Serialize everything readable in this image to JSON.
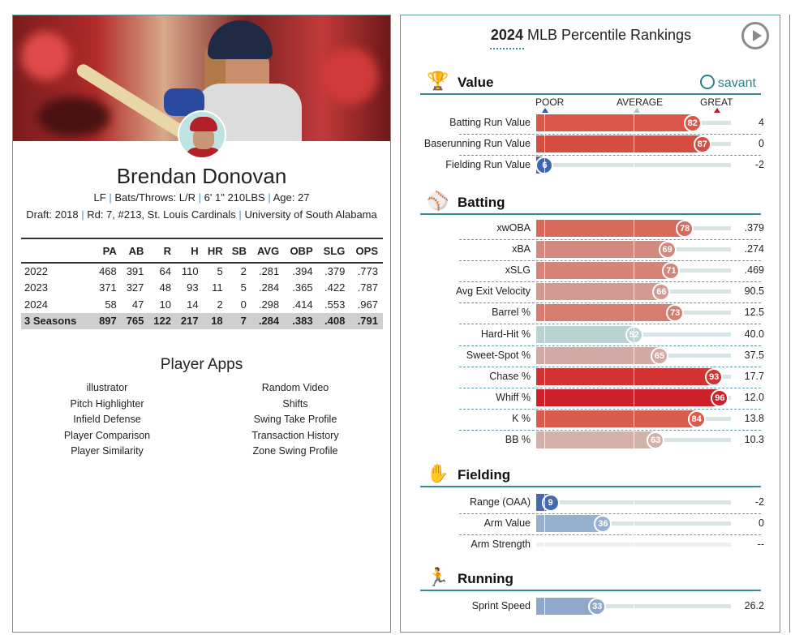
{
  "player": {
    "name": "Brendan Donovan",
    "position": "LF",
    "bats_throws": "Bats/Throws: L/R",
    "height_weight": "6' 1\" 210LBS",
    "age": "Age: 27",
    "draft_label": "Draft:",
    "draft_year": "2018",
    "draft_round": "Rd: 7, #213,",
    "draft_team": "St. Louis Cardinals",
    "school": "University of South Alabama"
  },
  "stats_table": {
    "headers": [
      "",
      "PA",
      "AB",
      "R",
      "H",
      "HR",
      "SB",
      "AVG",
      "OBP",
      "SLG",
      "OPS"
    ],
    "rows": [
      [
        "2022",
        "468",
        "391",
        "64",
        "110",
        "5",
        "2",
        ".281",
        ".394",
        ".379",
        ".773"
      ],
      [
        "2023",
        "371",
        "327",
        "48",
        "93",
        "11",
        "5",
        ".284",
        ".365",
        ".422",
        ".787"
      ],
      [
        "2024",
        "58",
        "47",
        "10",
        "14",
        "2",
        "0",
        ".298",
        ".414",
        ".553",
        ".967"
      ]
    ],
    "total": [
      "3 Seasons",
      "897",
      "765",
      "122",
      "217",
      "18",
      "7",
      ".284",
      ".383",
      ".408",
      ".791"
    ]
  },
  "player_apps": {
    "title": "Player Apps",
    "left": [
      "illustrator",
      "Pitch Highlighter",
      "Infield Defense",
      "Player Comparison",
      "Player Similarity"
    ],
    "right": [
      "Random Video",
      "Shifts",
      "Swing Take Profile",
      "Transaction History",
      "Zone Swing Profile"
    ]
  },
  "percentile": {
    "title_year": "2024",
    "title_rest": "MLB Percentile Rankings",
    "savant_label": "savant",
    "scale": {
      "poor": "POOR",
      "average": "AVERAGE",
      "great": "GREAT"
    },
    "colors": {
      "poor": "#2a5aa8",
      "average": "#a9c8cc",
      "great": "#c0191f",
      "accent": "#2b8288"
    },
    "sections": [
      {
        "title": "Value",
        "icon": "trophy-icon",
        "rows": [
          {
            "label": "Batting Run Value",
            "percentile": 82,
            "value": "4",
            "color": "#d9584a"
          },
          {
            "label": "Baserunning Run Value",
            "percentile": 87,
            "value": "0",
            "color": "#d74c3f"
          },
          {
            "label": "Fielding Run Value",
            "percentile": 6,
            "value": "-2",
            "color": "#3e66b0"
          }
        ]
      },
      {
        "title": "Batting",
        "icon": "batter-icon",
        "rows": [
          {
            "label": "xwOBA",
            "percentile": 78,
            "value": ".379",
            "color": "#d86a5b"
          },
          {
            "label": "xBA",
            "percentile": 69,
            "value": ".274",
            "color": "#d5887d"
          },
          {
            "label": "xSLG",
            "percentile": 71,
            "value": ".469",
            "color": "#d6837a"
          },
          {
            "label": "Avg Exit Velocity",
            "percentile": 66,
            "value": "90.5",
            "color": "#d49a91"
          },
          {
            "label": "Barrel %",
            "percentile": 73,
            "value": "12.5",
            "color": "#d77d70"
          },
          {
            "label": "Hard-Hit %",
            "percentile": 52,
            "value": "40.0",
            "color": "#b9d3d5"
          },
          {
            "label": "Sweet-Spot %",
            "percentile": 65,
            "value": "37.5",
            "color": "#d3aaa3"
          },
          {
            "label": "Chase %",
            "percentile": 93,
            "value": "17.7",
            "color": "#d33232"
          },
          {
            "label": "Whiff %",
            "percentile": 96,
            "value": "12.0",
            "color": "#cf2029"
          },
          {
            "label": "K %",
            "percentile": 84,
            "value": "13.8",
            "color": "#d85b4e"
          },
          {
            "label": "BB %",
            "percentile": 63,
            "value": "10.3",
            "color": "#d3b1ab"
          }
        ]
      },
      {
        "title": "Fielding",
        "icon": "fielder-icon",
        "rows": [
          {
            "label": "Range (OAA)",
            "percentile": 9,
            "value": "-2",
            "color": "#4469b0"
          },
          {
            "label": "Arm Value",
            "percentile": 36,
            "value": "0",
            "color": "#96b1cd"
          },
          {
            "label": "Arm Strength",
            "percentile": null,
            "value": "--",
            "color": "#cccccc"
          }
        ]
      },
      {
        "title": "Running",
        "icon": "runner-icon",
        "rows": [
          {
            "label": "Sprint Speed",
            "percentile": 33,
            "value": "26.2",
            "color": "#8ea8cb"
          }
        ]
      }
    ]
  }
}
